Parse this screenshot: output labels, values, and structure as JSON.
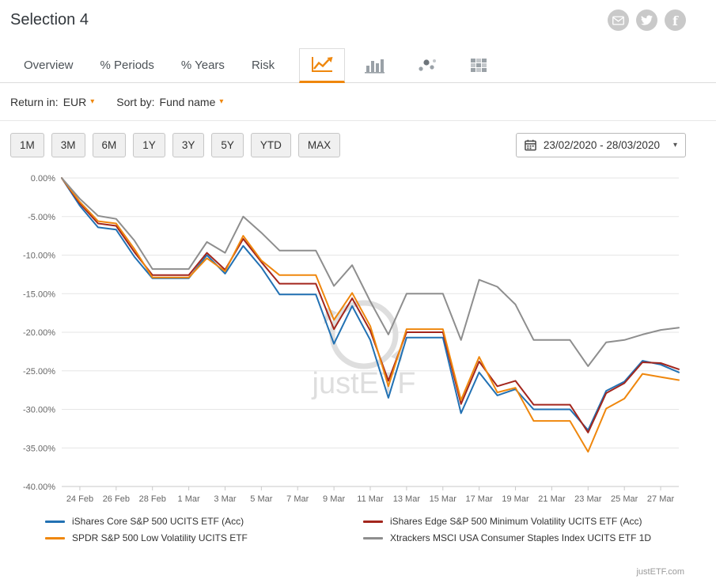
{
  "header": {
    "title": "Selection 4"
  },
  "share": {
    "icons": [
      {
        "name": "email-icon"
      },
      {
        "name": "twitter-icon"
      },
      {
        "name": "facebook-icon"
      }
    ]
  },
  "tabs": {
    "items": [
      {
        "id": "overview",
        "label": "Overview"
      },
      {
        "id": "periods",
        "label": "% Periods"
      },
      {
        "id": "years",
        "label": "% Years"
      },
      {
        "id": "risk",
        "label": "Risk"
      }
    ],
    "icon_tabs": [
      {
        "name": "line-chart-icon",
        "active": true
      },
      {
        "name": "bar-chart-icon",
        "active": false
      },
      {
        "name": "scatter-chart-icon",
        "active": false
      },
      {
        "name": "heatmap-chart-icon",
        "active": false
      }
    ]
  },
  "controls": {
    "return_in": {
      "label": "Return in:",
      "value": "EUR"
    },
    "sort_by": {
      "label": "Sort by:",
      "value": "Fund name"
    }
  },
  "periods": [
    "1M",
    "3M",
    "6M",
    "1Y",
    "3Y",
    "5Y",
    "YTD",
    "MAX"
  ],
  "date_range": {
    "value": "23/02/2020 - 28/03/2020"
  },
  "chart_data": {
    "type": "line",
    "title": "",
    "xlabel": "",
    "ylabel": "",
    "unit": "%",
    "grid": "horizontal",
    "legend_position": "bottom",
    "watermark": "justETF",
    "ylim": [
      -40,
      0
    ],
    "yticks": [
      0,
      -5,
      -10,
      -15,
      -20,
      -25,
      -30,
      -35,
      -40
    ],
    "ytick_labels": [
      "0.00%",
      "-5.00%",
      "-10.00%",
      "-15.00%",
      "-20.00%",
      "-25.00%",
      "-30.00%",
      "-35.00%",
      "-40.00%"
    ],
    "x": [
      "23 Feb",
      "24 Feb",
      "25 Feb",
      "26 Feb",
      "27 Feb",
      "28 Feb",
      "29 Feb",
      "1 Mar",
      "2 Mar",
      "3 Mar",
      "4 Mar",
      "5 Mar",
      "6 Mar",
      "7 Mar",
      "8 Mar",
      "9 Mar",
      "10 Mar",
      "11 Mar",
      "12 Mar",
      "13 Mar",
      "14 Mar",
      "15 Mar",
      "16 Mar",
      "17 Mar",
      "18 Mar",
      "19 Mar",
      "20 Mar",
      "21 Mar",
      "22 Mar",
      "23 Mar",
      "24 Mar",
      "25 Mar",
      "26 Mar",
      "27 Mar",
      "28 Mar"
    ],
    "x_tick_indices": [
      1,
      3,
      5,
      7,
      9,
      11,
      13,
      15,
      17,
      19,
      21,
      23,
      25,
      27,
      29,
      31,
      33
    ],
    "series": [
      {
        "name": "iShares Core S&P 500 UCITS ETF (Acc)",
        "color": "#2271b3",
        "values": [
          0,
          -3.6,
          -6.4,
          -6.7,
          -10.2,
          -13.0,
          -13.0,
          -13.0,
          -10.0,
          -12.4,
          -8.8,
          -11.6,
          -15.1,
          -15.1,
          -15.1,
          -21.5,
          -16.6,
          -21.0,
          -28.5,
          -20.7,
          -20.7,
          -20.7,
          -30.5,
          -25.2,
          -28.2,
          -27.4,
          -30.0,
          -30.0,
          -30.0,
          -32.7,
          -27.6,
          -26.4,
          -23.7,
          -24.2,
          -25.2
        ]
      },
      {
        "name": "iShares Edge S&P 500 Minimum Volatility UCITS ETF (Acc)",
        "color": "#a3261d",
        "values": [
          0,
          -3.3,
          -5.9,
          -6.2,
          -9.6,
          -12.6,
          -12.6,
          -12.6,
          -9.7,
          -11.9,
          -7.9,
          -10.9,
          -13.7,
          -13.7,
          -13.7,
          -19.6,
          -15.6,
          -19.8,
          -26.3,
          -20.0,
          -20.0,
          -20.0,
          -29.3,
          -23.8,
          -27.0,
          -26.3,
          -29.4,
          -29.4,
          -29.4,
          -33.0,
          -27.9,
          -26.6,
          -23.9,
          -24.0,
          -24.8
        ]
      },
      {
        "name": "SPDR S&P 500 Low Volatility UCITS ETF",
        "color": "#ef870d",
        "values": [
          0,
          -3.1,
          -5.6,
          -5.9,
          -9.2,
          -12.9,
          -12.9,
          -12.9,
          -10.4,
          -12.1,
          -7.5,
          -10.7,
          -12.6,
          -12.6,
          -12.6,
          -18.4,
          -14.9,
          -19.2,
          -27.0,
          -19.6,
          -19.6,
          -19.6,
          -28.8,
          -23.2,
          -27.8,
          -27.2,
          -31.5,
          -31.5,
          -31.5,
          -35.5,
          -29.9,
          -28.6,
          -25.4,
          -25.8,
          -26.2
        ]
      },
      {
        "name": "Xtrackers MSCI USA Consumer Staples Index UCITS ETF 1D",
        "color": "#8e8e8e",
        "values": [
          0,
          -2.7,
          -4.9,
          -5.3,
          -8.1,
          -11.8,
          -11.8,
          -11.8,
          -8.3,
          -9.7,
          -5.0,
          -7.1,
          -9.4,
          -9.4,
          -9.4,
          -14.0,
          -11.3,
          -16.0,
          -20.3,
          -15.0,
          -15.0,
          -15.0,
          -21.0,
          -13.2,
          -14.1,
          -16.4,
          -21.0,
          -21.0,
          -21.0,
          -24.4,
          -21.3,
          -21.0,
          -20.3,
          -19.7,
          -19.4
        ]
      }
    ]
  },
  "footer": {
    "site": "justETF.com"
  },
  "colors": {
    "accent": "#ef870d",
    "grid": "#e6e6e6",
    "axis": "#c9c9c9",
    "tick_text": "#666666",
    "watermark": "#dedede"
  }
}
